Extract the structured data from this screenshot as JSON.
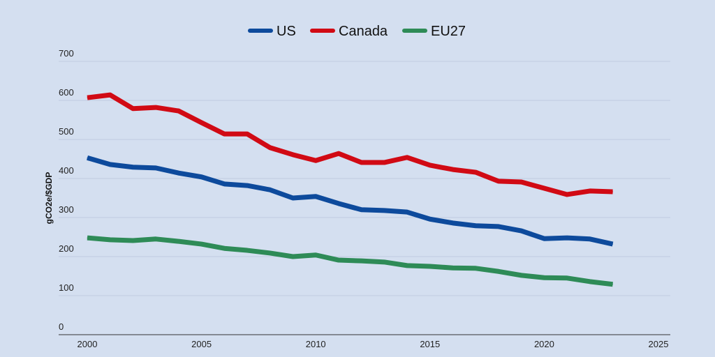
{
  "chart_data": {
    "type": "line",
    "title": "",
    "xlabel": "",
    "ylabel": "gCO2e/$GDP",
    "xlim": [
      1999,
      2026
    ],
    "ylim": [
      0,
      700
    ],
    "x_ticks": [
      "2000",
      "2005",
      "2010",
      "2015",
      "2020",
      "2025"
    ],
    "y_ticks": [
      "0",
      "100",
      "200",
      "300",
      "400",
      "500",
      "600",
      "700"
    ],
    "grid": true,
    "legend_position": "top",
    "x": [
      2000,
      2001,
      2002,
      2003,
      2004,
      2005,
      2006,
      2007,
      2008,
      2009,
      2010,
      2011,
      2012,
      2013,
      2014,
      2015,
      2016,
      2017,
      2018,
      2019,
      2020,
      2021,
      2022,
      2023
    ],
    "series": [
      {
        "name": "US",
        "color": "#0d4a9c",
        "values": [
          453,
          436,
          429,
          427,
          414,
          404,
          386,
          382,
          371,
          350,
          354,
          336,
          320,
          318,
          314,
          296,
          286,
          279,
          277,
          266,
          246,
          248,
          245,
          232
        ]
      },
      {
        "name": "Canada",
        "color": "#d10a14",
        "values": [
          607,
          614,
          579,
          582,
          573,
          543,
          514,
          514,
          479,
          461,
          446,
          464,
          441,
          441,
          454,
          434,
          423,
          416,
          393,
          391,
          375,
          359,
          368,
          366
        ]
      },
      {
        "name": "EU27",
        "color": "#2e8b57",
        "values": [
          248,
          243,
          241,
          245,
          239,
          232,
          221,
          216,
          209,
          200,
          204,
          191,
          189,
          186,
          177,
          175,
          171,
          170,
          162,
          152,
          146,
          145,
          136,
          129
        ]
      }
    ]
  }
}
